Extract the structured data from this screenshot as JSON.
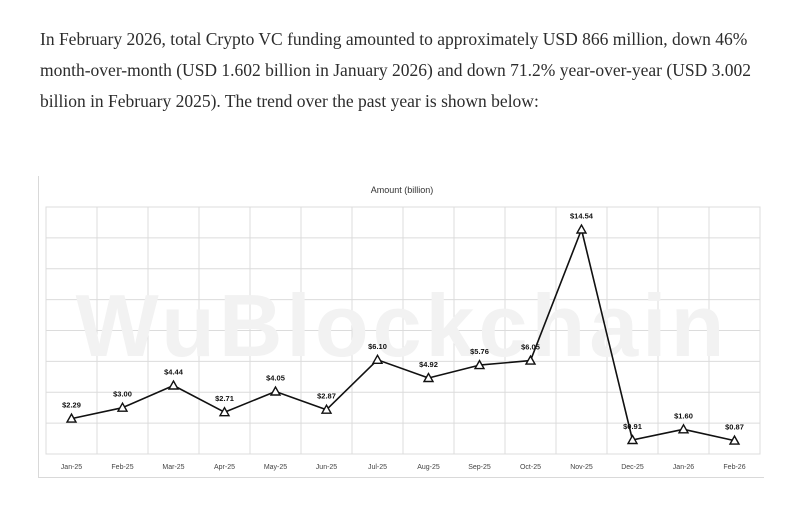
{
  "article": {
    "paragraph": "In February 2026, total Crypto VC funding amounted to approximately USD 866 million, down 46% month-over-month (USD 1.602 billion in January 2026) and down 71.2% year-over-year (USD 3.002 billion in February 2025). The trend over the past year is shown below:"
  },
  "watermark": "WuBlockchain",
  "colors": {
    "text": "#2c2c2c",
    "line": "#111111",
    "grid": "#dcdcdc",
    "watermark": "#f3f3f3"
  },
  "chart_data": {
    "type": "line",
    "title": "Amount  (billion)",
    "xlabel": "",
    "ylabel": "",
    "categories": [
      "Jan-25",
      "Feb-25",
      "Mar-25",
      "Apr-25",
      "May-25",
      "Jun-25",
      "Jul-25",
      "Aug-25",
      "Sep-25",
      "Oct-25",
      "Nov-25",
      "Dec-25",
      "Jan-26",
      "Feb-26"
    ],
    "series": [
      {
        "name": "Amount",
        "values": [
          2.29,
          3.0,
          4.44,
          2.71,
          4.05,
          2.87,
          6.1,
          4.92,
          5.76,
          6.05,
          14.54,
          0.91,
          1.6,
          0.87
        ],
        "labels": [
          "$2.29",
          "$3.00",
          "$4.44",
          "$2.71",
          "$4.05",
          "$2.87",
          "$6.10",
          "$4.92",
          "$5.76",
          "$6.05",
          "$14.54",
          "$0.91",
          "$1.60",
          "$0.87"
        ],
        "marker": "triangle"
      }
    ],
    "ylim": [
      0,
      16
    ],
    "grid": true,
    "legend": "none"
  }
}
